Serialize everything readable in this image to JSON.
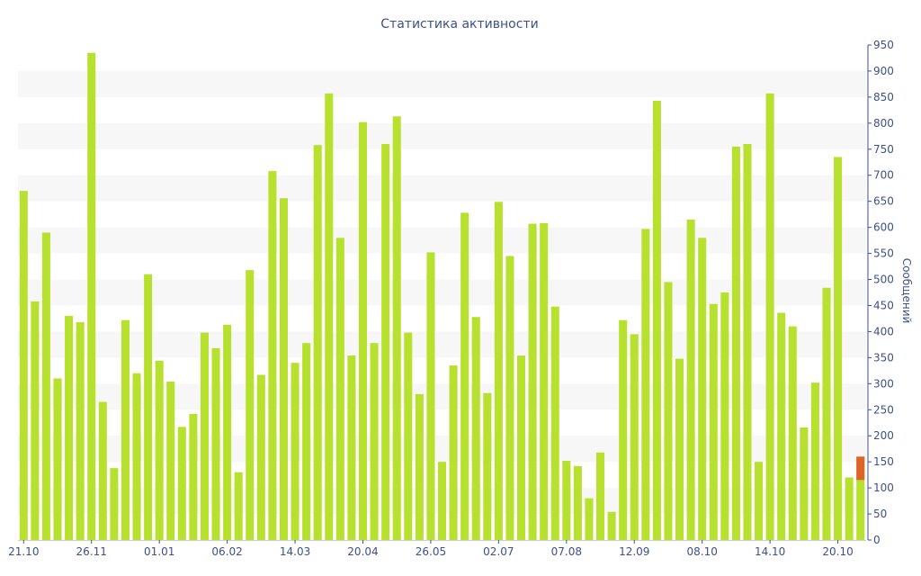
{
  "colors": {
    "bar": "#b8e02e",
    "highlight": "#e0642a",
    "axis_text": "#3e4f8c",
    "band": "#f7f7f7",
    "axis_line": "#3e4f8c"
  },
  "chart_data": {
    "type": "bar",
    "title": "Статистика активности",
    "xlabel": "",
    "ylabel": "Сообщений",
    "ylim": [
      0,
      950
    ],
    "y_ticks": [
      0,
      50,
      100,
      150,
      200,
      250,
      300,
      350,
      400,
      450,
      500,
      550,
      600,
      650,
      700,
      750,
      800,
      850,
      900,
      950
    ],
    "y_axis_side": "right",
    "grid": "alternating horizontal bands",
    "x_tick_labels": [
      {
        "label": "21.10",
        "index": 0
      },
      {
        "label": "26.11",
        "index": 6
      },
      {
        "label": "01.01",
        "index": 12
      },
      {
        "label": "06.02",
        "index": 18
      },
      {
        "label": "14.03",
        "index": 24
      },
      {
        "label": "20.04",
        "index": 30
      },
      {
        "label": "26.05",
        "index": 36
      },
      {
        "label": "02.07",
        "index": 42
      },
      {
        "label": "07.08",
        "index": 48
      },
      {
        "label": "12.09",
        "index": 54
      },
      {
        "label": "08.10",
        "index": 60
      },
      {
        "label": "14.10",
        "index": 66
      },
      {
        "label": "20.10",
        "index": 72
      }
    ],
    "values": [
      670,
      458,
      590,
      310,
      430,
      418,
      935,
      265,
      138,
      422,
      320,
      510,
      344,
      304,
      217,
      242,
      398,
      368,
      413,
      130,
      518,
      317,
      708,
      656,
      340,
      378,
      758,
      857,
      580,
      354,
      802,
      378,
      760,
      813,
      398,
      280,
      552,
      150,
      335,
      628,
      428,
      282,
      649,
      545,
      354,
      607,
      608,
      448,
      152,
      142,
      80,
      168,
      54,
      422,
      395,
      597,
      843,
      495,
      348,
      615,
      580,
      453,
      475,
      755,
      760,
      150,
      857,
      436,
      410,
      216,
      302,
      484,
      735,
      120,
      160
    ],
    "highlight_last": true
  }
}
